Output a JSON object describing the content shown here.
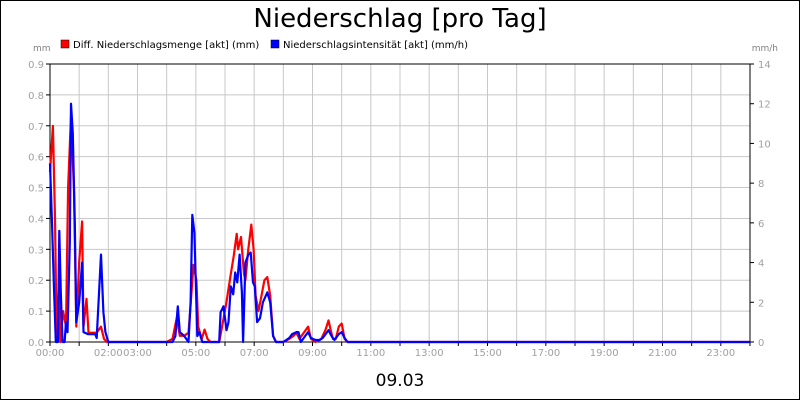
{
  "chart_data": {
    "type": "line",
    "title": "Niederschlag [pro Tag]",
    "date_label": "09.03",
    "y_left_unit": "mm",
    "y_right_unit": "mm/h",
    "y_left_lim": [
      0,
      0.9
    ],
    "y_right_lim": [
      0,
      14
    ],
    "y_left_ticks": [
      "0.0",
      "0.1",
      "0.2",
      "0.3",
      "0.4",
      "0.5",
      "0.6",
      "0.7",
      "0.8",
      "0.9"
    ],
    "y_right_ticks": [
      "0",
      "2",
      "4",
      "6",
      "8",
      "10",
      "12",
      "14"
    ],
    "x_lim_hours": [
      0,
      24
    ],
    "x_ticks": [
      {
        "label": "00:00",
        "h": 0
      },
      {
        "label": "02:00",
        "h": 2
      },
      {
        "label": "03:00",
        "h": 3
      },
      {
        "label": "05:00",
        "h": 5
      },
      {
        "label": "07:00",
        "h": 7
      },
      {
        "label": "09:00",
        "h": 9
      },
      {
        "label": "11:00",
        "h": 11
      },
      {
        "label": "13:00",
        "h": 13
      },
      {
        "label": "15:00",
        "h": 15
      },
      {
        "label": "17:00",
        "h": 17
      },
      {
        "label": "19:00",
        "h": 19
      },
      {
        "label": "21:00",
        "h": 21
      },
      {
        "label": "23:00",
        "h": 23
      }
    ],
    "grid": true,
    "legend_position": "top-left",
    "series": [
      {
        "name": "Diff. Niederschlagsmenge [akt] (mm)",
        "axis": "left",
        "color": "#ff0000",
        "points": [
          [
            0.0,
            0.55
          ],
          [
            0.1,
            0.7
          ],
          [
            0.17,
            0.4
          ],
          [
            0.23,
            0.0
          ],
          [
            0.3,
            0.18
          ],
          [
            0.35,
            0.0
          ],
          [
            0.45,
            0.1
          ],
          [
            0.55,
            0.05
          ],
          [
            0.62,
            0.5
          ],
          [
            0.72,
            0.73
          ],
          [
            0.82,
            0.5
          ],
          [
            0.9,
            0.05
          ],
          [
            1.0,
            0.26
          ],
          [
            1.1,
            0.39
          ],
          [
            1.15,
            0.05
          ],
          [
            1.25,
            0.14
          ],
          [
            1.32,
            0.03
          ],
          [
            1.45,
            0.03
          ],
          [
            1.6,
            0.03
          ],
          [
            1.75,
            0.05
          ],
          [
            1.85,
            0.01
          ],
          [
            1.95,
            0.0
          ],
          [
            4.0,
            0.0
          ],
          [
            4.2,
            0.01
          ],
          [
            4.35,
            0.08
          ],
          [
            4.45,
            0.02
          ],
          [
            4.6,
            0.02
          ],
          [
            4.75,
            0.03
          ],
          [
            4.82,
            0.12
          ],
          [
            4.92,
            0.25
          ],
          [
            5.02,
            0.2
          ],
          [
            5.08,
            0.05
          ],
          [
            5.2,
            0.01
          ],
          [
            5.3,
            0.04
          ],
          [
            5.4,
            0.01
          ],
          [
            5.5,
            0.0
          ],
          [
            5.8,
            0.0
          ],
          [
            5.9,
            0.05
          ],
          [
            6.05,
            0.13
          ],
          [
            6.2,
            0.22
          ],
          [
            6.3,
            0.28
          ],
          [
            6.4,
            0.35
          ],
          [
            6.45,
            0.3
          ],
          [
            6.55,
            0.34
          ],
          [
            6.65,
            0.22
          ],
          [
            6.7,
            0.2
          ],
          [
            6.8,
            0.3
          ],
          [
            6.9,
            0.38
          ],
          [
            6.98,
            0.3
          ],
          [
            7.05,
            0.15
          ],
          [
            7.15,
            0.1
          ],
          [
            7.25,
            0.15
          ],
          [
            7.35,
            0.2
          ],
          [
            7.45,
            0.21
          ],
          [
            7.55,
            0.15
          ],
          [
            7.65,
            0.02
          ],
          [
            7.75,
            0.0
          ],
          [
            8.0,
            0.0
          ],
          [
            8.2,
            0.01
          ],
          [
            8.35,
            0.02
          ],
          [
            8.45,
            0.03
          ],
          [
            8.55,
            0.01
          ],
          [
            8.7,
            0.03
          ],
          [
            8.85,
            0.05
          ],
          [
            8.95,
            0.01
          ],
          [
            9.1,
            0.0
          ],
          [
            9.3,
            0.01
          ],
          [
            9.45,
            0.04
          ],
          [
            9.55,
            0.07
          ],
          [
            9.62,
            0.04
          ],
          [
            9.7,
            0.01
          ],
          [
            9.8,
            0.01
          ],
          [
            9.9,
            0.05
          ],
          [
            10.0,
            0.06
          ],
          [
            10.1,
            0.01
          ],
          [
            10.2,
            0.0
          ],
          [
            24.0,
            0.0
          ]
        ]
      },
      {
        "name": "Niederschlagsintensität [akt] (mm/h)",
        "axis": "right",
        "color": "#0000ff",
        "points": [
          [
            0.0,
            9.0
          ],
          [
            0.07,
            6.0
          ],
          [
            0.13,
            3.0
          ],
          [
            0.2,
            0.0
          ],
          [
            0.27,
            0.0
          ],
          [
            0.32,
            5.6
          ],
          [
            0.37,
            2.5
          ],
          [
            0.43,
            0.0
          ],
          [
            0.5,
            0.0
          ],
          [
            0.55,
            1.0
          ],
          [
            0.6,
            0.5
          ],
          [
            0.68,
            5.0
          ],
          [
            0.72,
            12.0
          ],
          [
            0.78,
            10.5
          ],
          [
            0.85,
            6.0
          ],
          [
            0.9,
            1.0
          ],
          [
            1.0,
            2.0
          ],
          [
            1.1,
            4.0
          ],
          [
            1.15,
            0.5
          ],
          [
            1.3,
            0.4
          ],
          [
            1.45,
            0.4
          ],
          [
            1.55,
            0.4
          ],
          [
            1.6,
            0.2
          ],
          [
            1.75,
            4.4
          ],
          [
            1.83,
            1.5
          ],
          [
            1.9,
            0.5
          ],
          [
            2.0,
            0.0
          ],
          [
            4.2,
            0.0
          ],
          [
            4.3,
            0.3
          ],
          [
            4.38,
            1.8
          ],
          [
            4.45,
            0.5
          ],
          [
            4.6,
            0.3
          ],
          [
            4.75,
            0.0
          ],
          [
            4.82,
            2.0
          ],
          [
            4.88,
            6.4
          ],
          [
            4.95,
            5.5
          ],
          [
            5.05,
            0.3
          ],
          [
            5.12,
            0.5
          ],
          [
            5.22,
            0.0
          ],
          [
            5.4,
            0.0
          ],
          [
            5.8,
            0.0
          ],
          [
            5.85,
            1.5
          ],
          [
            5.95,
            1.8
          ],
          [
            6.05,
            0.6
          ],
          [
            6.12,
            1.0
          ],
          [
            6.2,
            2.8
          ],
          [
            6.28,
            2.4
          ],
          [
            6.35,
            3.5
          ],
          [
            6.42,
            3.0
          ],
          [
            6.5,
            4.4
          ],
          [
            6.58,
            2.5
          ],
          [
            6.62,
            0.0
          ],
          [
            6.7,
            4.0
          ],
          [
            6.8,
            4.4
          ],
          [
            6.88,
            4.5
          ],
          [
            6.96,
            3.0
          ],
          [
            7.02,
            2.8
          ],
          [
            7.1,
            1.0
          ],
          [
            7.2,
            1.2
          ],
          [
            7.3,
            2.0
          ],
          [
            7.45,
            2.5
          ],
          [
            7.55,
            2.0
          ],
          [
            7.65,
            0.3
          ],
          [
            7.75,
            0.0
          ],
          [
            8.0,
            0.0
          ],
          [
            8.2,
            0.2
          ],
          [
            8.3,
            0.4
          ],
          [
            8.45,
            0.5
          ],
          [
            8.52,
            0.5
          ],
          [
            8.6,
            0.0
          ],
          [
            8.75,
            0.3
          ],
          [
            8.85,
            0.5
          ],
          [
            8.95,
            0.2
          ],
          [
            9.1,
            0.1
          ],
          [
            9.25,
            0.1
          ],
          [
            9.35,
            0.2
          ],
          [
            9.45,
            0.4
          ],
          [
            9.55,
            0.6
          ],
          [
            9.65,
            0.3
          ],
          [
            9.75,
            0.1
          ],
          [
            9.9,
            0.4
          ],
          [
            10.0,
            0.5
          ],
          [
            10.1,
            0.2
          ],
          [
            10.2,
            0.0
          ],
          [
            24.0,
            0.0
          ]
        ]
      }
    ]
  }
}
